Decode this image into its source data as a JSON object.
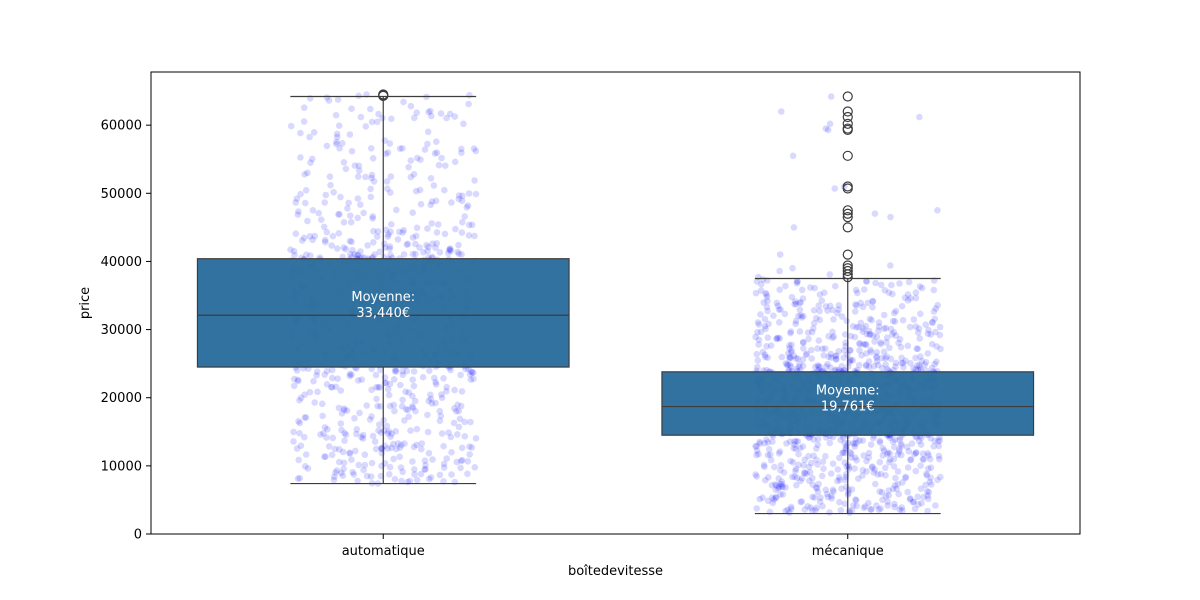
{
  "chart_data": {
    "type": "box",
    "xlabel": "boîtedevitesse",
    "ylabel": "price",
    "ylim": [
      0,
      67800
    ],
    "yticks": [
      0,
      10000,
      20000,
      30000,
      40000,
      50000,
      60000
    ],
    "grid": false,
    "box_color": "#2e6f9e",
    "box_edge_color": "#3d3d3d",
    "point_color": "#0000ff",
    "point_alpha": 0.15,
    "categories": [
      "automatique",
      "mécanique"
    ],
    "boxes": [
      {
        "category": "automatique",
        "whisker_low": 7400,
        "q1": 24500,
        "median": 32100,
        "q3": 40400,
        "whisker_high": 64200,
        "outliers": [
          64300,
          64400,
          64500
        ],
        "mean_label": "Moyenne:",
        "mean_value": "33,440€",
        "mean": 33440,
        "points_summary": {
          "count": 1100,
          "min": 7400,
          "max": 64500
        }
      },
      {
        "category": "mécanique",
        "whisker_low": 3000,
        "q1": 14500,
        "median": 18700,
        "q3": 23800,
        "whisker_high": 37500,
        "outliers": [
          37700,
          38100,
          38600,
          39000,
          39400,
          41000,
          45000,
          46500,
          47000,
          47500,
          50700,
          51000,
          55500,
          59300,
          59500,
          60200,
          61200,
          62000,
          64200
        ],
        "mean_label": "Moyenne:",
        "mean_value": "19,761€",
        "mean": 19761,
        "points_summary": {
          "count": 1400,
          "min": 3000,
          "max": 64200
        }
      }
    ]
  }
}
